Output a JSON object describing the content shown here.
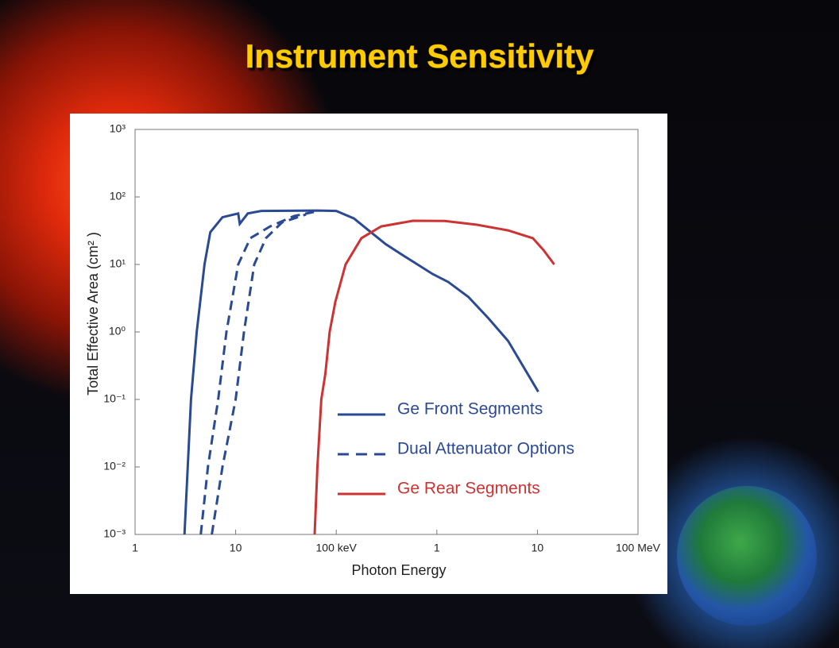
{
  "chart_data": {
    "type": "line",
    "title": "Instrument Sensitivity",
    "xlabel": "Photon Energy",
    "ylabel": "Total Effective Area (cm² )",
    "log_x": true,
    "log_y": true,
    "xlim": [
      1,
      100000
    ],
    "ylim": [
      0.001,
      1000
    ],
    "xticks": [
      1,
      10,
      {
        "value": 100,
        "label": "100 keV"
      },
      {
        "value": 1000,
        "label": "1"
      },
      {
        "value": 10000,
        "label": "10"
      },
      {
        "value": 100000,
        "label": "100 MeV"
      }
    ],
    "yticks": [
      {
        "value": 0.001,
        "label": "10⁻³"
      },
      {
        "value": 0.01,
        "label": "10⁻²"
      },
      {
        "value": 0.1,
        "label": "10⁻¹"
      },
      {
        "value": 1,
        "label": "10⁰"
      },
      {
        "value": 10,
        "label": "10¹"
      },
      {
        "value": 100,
        "label": "10²"
      },
      {
        "value": 1000,
        "label": "10³"
      }
    ],
    "legend": "lower right",
    "series": [
      {
        "name": "Ge Front Segments",
        "color": "#2b4a94",
        "dash": false,
        "x": [
          3.1,
          3.6,
          4.1,
          4.9,
          5.6,
          7.4,
          10.6,
          11,
          13.2,
          18,
          65,
          100,
          150,
          215,
          310,
          485,
          910,
          1300,
          2060,
          3250,
          5130,
          7300,
          10200
        ],
        "values": [
          0.001,
          0.1,
          1,
          10,
          30,
          50,
          57,
          40,
          57,
          62,
          63,
          62,
          48,
          31,
          20,
          13,
          7.2,
          5.5,
          3.3,
          1.6,
          0.73,
          0.3,
          0.13
        ]
      },
      {
        "name": "Dual Attenuator Options",
        "color": "#2b4a94",
        "dash": true,
        "lines": [
          {
            "x": [
              4.5,
              5.3,
              6.7,
              8.1,
              10.6,
              14,
              22,
              38,
              60
            ],
            "values": [
              0.001,
              0.01,
              0.1,
              1,
              10,
              24.5,
              36.6,
              52,
              60
            ]
          },
          {
            "x": [
              5.8,
              7.4,
              10,
              12.1,
              15.3,
              20,
              29,
              50
            ],
            "values": [
              0.001,
              0.01,
              0.1,
              1,
              10,
              24.5,
              42,
              55
            ]
          }
        ]
      },
      {
        "name": "Ge Rear Segments",
        "color": "#cc3333",
        "dash": false,
        "x": [
          61,
          65,
          71,
          78,
          86,
          98,
          124,
          178,
          280,
          580,
          1200,
          2500,
          5100,
          9000,
          11500,
          14700
        ],
        "values": [
          0.001,
          0.01,
          0.1,
          0.24,
          1,
          2.8,
          10,
          24.5,
          36.6,
          44.4,
          44,
          38.7,
          32,
          24.5,
          16.3,
          10
        ]
      }
    ]
  }
}
